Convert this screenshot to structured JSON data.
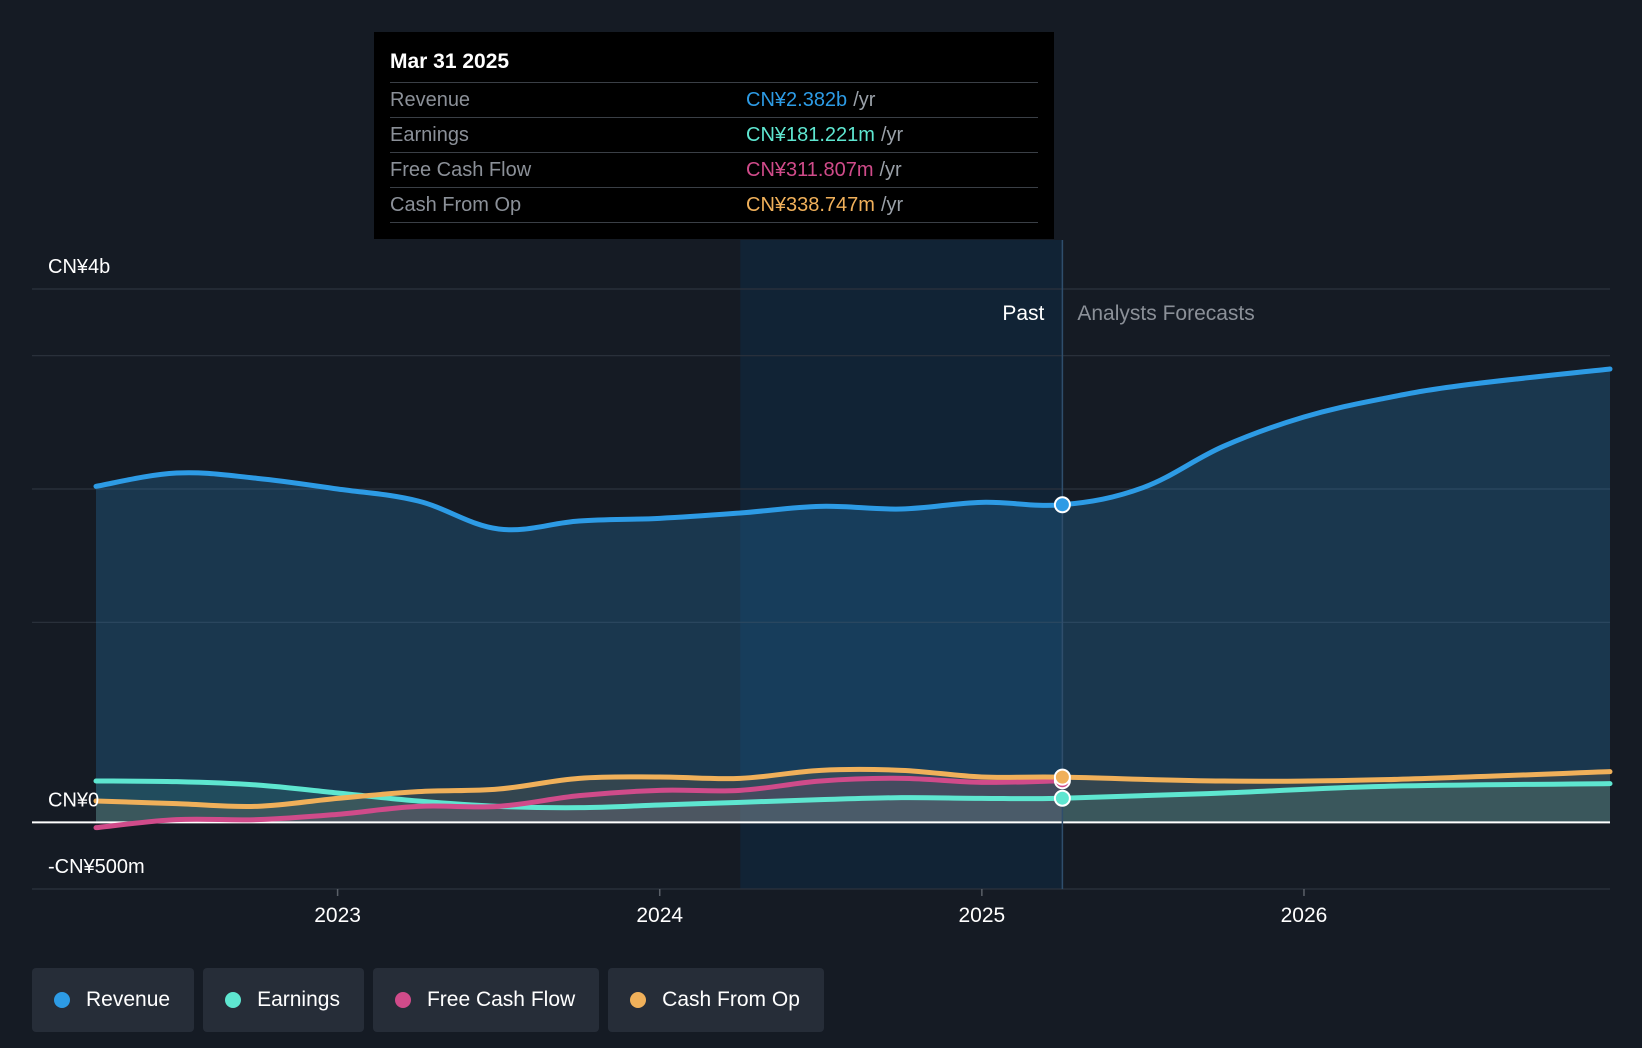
{
  "tooltip": {
    "date": "Mar 31 2025",
    "rows": [
      {
        "label": "Revenue",
        "value": "CN¥2.382b",
        "unit": "/yr",
        "color": "#2d9be5"
      },
      {
        "label": "Earnings",
        "value": "CN¥181.221m",
        "unit": "/yr",
        "color": "#5ee6d0"
      },
      {
        "label": "Free Cash Flow",
        "value": "CN¥311.807m",
        "unit": "/yr",
        "color": "#d04b8a"
      },
      {
        "label": "Cash From Op",
        "value": "CN¥338.747m",
        "unit": "/yr",
        "color": "#f0b05a"
      }
    ]
  },
  "legend": [
    {
      "label": "Revenue",
      "color": "#2d9be5"
    },
    {
      "label": "Earnings",
      "color": "#5ee6d0"
    },
    {
      "label": "Free Cash Flow",
      "color": "#d04b8a"
    },
    {
      "label": "Cash From Op",
      "color": "#f0b05a"
    }
  ],
  "chart_data": {
    "type": "line",
    "title": "",
    "xlabel": "",
    "ylabel": "",
    "ylim": [
      -500,
      4000
    ],
    "xlim": [
      2022.25,
      2026.95
    ],
    "y_tick_labels": [
      {
        "value": 4000,
        "label": "CN¥4b"
      },
      {
        "value": 0,
        "label": "CN¥0"
      },
      {
        "value": -500,
        "label": "-CN¥500m"
      }
    ],
    "x_tick_labels": [
      {
        "value": 2023,
        "label": "2023"
      },
      {
        "value": 2024,
        "label": "2024"
      },
      {
        "value": 2025,
        "label": "2025"
      },
      {
        "value": 2026,
        "label": "2026"
      }
    ],
    "gridlines": [
      4000,
      3500,
      2500,
      1500,
      0,
      -500
    ],
    "past_label": "Past",
    "forecast_label": "Analysts Forecasts",
    "highlight_range": [
      2024.25,
      2025.25
    ],
    "divider_x": 2025.25,
    "series": [
      {
        "name": "Revenue",
        "color": "#2d9be5",
        "x": [
          2022.25,
          2022.5,
          2022.75,
          2023.0,
          2023.25,
          2023.5,
          2023.75,
          2024.0,
          2024.25,
          2024.5,
          2024.75,
          2025.0,
          2025.25,
          2025.5,
          2025.75,
          2026.0,
          2026.25,
          2026.5,
          2026.95
        ],
        "values": [
          2520,
          2620,
          2580,
          2500,
          2410,
          2200,
          2260,
          2280,
          2320,
          2370,
          2350,
          2400,
          2382,
          2510,
          2820,
          3040,
          3180,
          3280,
          3400
        ]
      },
      {
        "name": "Earnings",
        "color": "#5ee6d0",
        "x": [
          2022.25,
          2022.5,
          2022.75,
          2023.0,
          2023.25,
          2023.5,
          2023.75,
          2024.0,
          2024.25,
          2024.5,
          2024.75,
          2025.0,
          2025.25,
          2025.75,
          2026.25,
          2026.95
        ],
        "values": [
          310,
          305,
          280,
          220,
          160,
          120,
          110,
          130,
          150,
          170,
          185,
          180,
          181,
          220,
          270,
          290
        ]
      },
      {
        "name": "Free Cash Flow",
        "color": "#d04b8a",
        "x": [
          2022.25,
          2022.5,
          2022.75,
          2023.0,
          2023.25,
          2023.5,
          2023.75,
          2024.0,
          2024.25,
          2024.5,
          2024.75,
          2025.0,
          2025.25
        ],
        "values": [
          -40,
          20,
          20,
          60,
          120,
          120,
          200,
          240,
          240,
          310,
          330,
          300,
          312
        ]
      },
      {
        "name": "Cash From Op",
        "color": "#f0b05a",
        "x": [
          2022.25,
          2022.5,
          2022.75,
          2023.0,
          2023.25,
          2023.5,
          2023.75,
          2024.0,
          2024.25,
          2024.5,
          2024.75,
          2025.0,
          2025.25,
          2025.75,
          2026.25,
          2026.95
        ],
        "values": [
          160,
          140,
          120,
          180,
          230,
          250,
          330,
          340,
          330,
          390,
          390,
          340,
          339,
          310,
          320,
          380
        ]
      }
    ]
  }
}
